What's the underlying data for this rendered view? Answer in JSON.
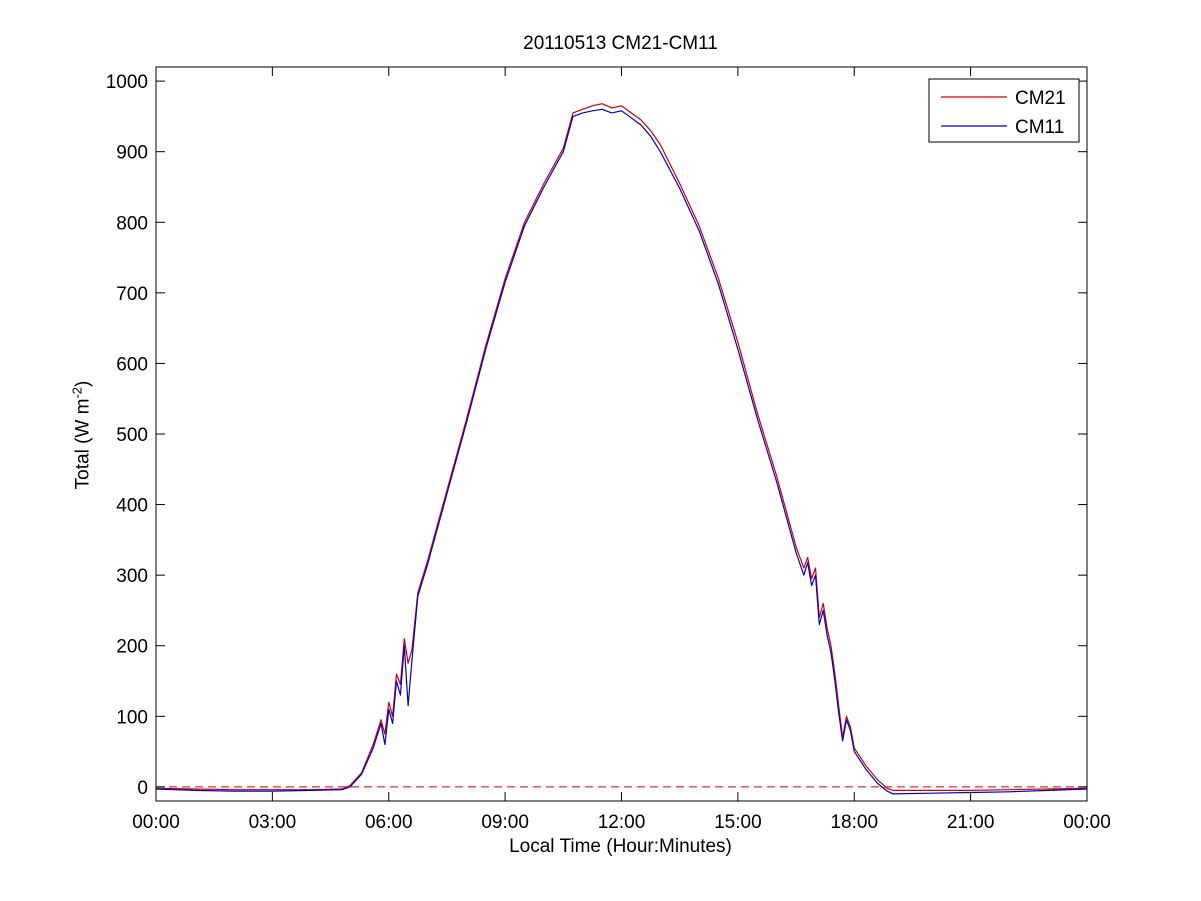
{
  "chart_data": {
    "type": "line",
    "title": "20110513 CM21-CM11",
    "xlabel": "Local Time (Hour:Minutes)",
    "ylabel_text": "Total (W m",
    "ylabel_sup": "-2",
    "ylabel_close": ")",
    "xlim": [
      0,
      24
    ],
    "ylim": [
      -20,
      1020
    ],
    "x_ticks": [
      {
        "value": 0,
        "label": "00:00"
      },
      {
        "value": 3,
        "label": "03:00"
      },
      {
        "value": 6,
        "label": "06:00"
      },
      {
        "value": 9,
        "label": "09:00"
      },
      {
        "value": 12,
        "label": "12:00"
      },
      {
        "value": 15,
        "label": "15:00"
      },
      {
        "value": 18,
        "label": "18:00"
      },
      {
        "value": 21,
        "label": "21:00"
      },
      {
        "value": 24,
        "label": "00:00"
      }
    ],
    "y_ticks": [
      {
        "value": 0,
        "label": "0"
      },
      {
        "value": 100,
        "label": "100"
      },
      {
        "value": 200,
        "label": "200"
      },
      {
        "value": 300,
        "label": "300"
      },
      {
        "value": 400,
        "label": "400"
      },
      {
        "value": 500,
        "label": "500"
      },
      {
        "value": 600,
        "label": "600"
      },
      {
        "value": 700,
        "label": "700"
      },
      {
        "value": 800,
        "label": "800"
      },
      {
        "value": 900,
        "label": "900"
      },
      {
        "value": 1000,
        "label": "1000"
      }
    ],
    "grid": false,
    "legend_position": "top-right",
    "reference_line": {
      "y": 0,
      "color": "#cc0000",
      "style": "dashed"
    },
    "series": [
      {
        "name": "CM21",
        "color": "#cc0000",
        "x": [
          0,
          1,
          2,
          3,
          4,
          4.8,
          5.0,
          5.3,
          5.6,
          5.8,
          5.9,
          6.0,
          6.1,
          6.2,
          6.3,
          6.4,
          6.5,
          6.6,
          6.75,
          7.0,
          7.5,
          8.0,
          8.5,
          9.0,
          9.5,
          10.0,
          10.5,
          10.75,
          11.0,
          11.25,
          11.5,
          11.75,
          12.0,
          12.25,
          12.5,
          12.75,
          13.0,
          13.5,
          14.0,
          14.5,
          15.0,
          15.5,
          16.0,
          16.5,
          16.7,
          16.8,
          16.9,
          17.0,
          17.1,
          17.2,
          17.3,
          17.4,
          17.5,
          17.6,
          17.7,
          17.8,
          17.9,
          18.0,
          18.3,
          18.6,
          18.85,
          19.0,
          20.0,
          21.0,
          22.0,
          23.0,
          24.0
        ],
        "y": [
          -2,
          -3,
          -4,
          -4,
          -4,
          -3,
          2,
          20,
          60,
          95,
          75,
          120,
          100,
          160,
          145,
          210,
          175,
          195,
          275,
          320,
          420,
          520,
          625,
          720,
          800,
          855,
          905,
          955,
          960,
          965,
          968,
          962,
          965,
          955,
          945,
          930,
          910,
          855,
          795,
          720,
          630,
          530,
          440,
          340,
          310,
          325,
          295,
          310,
          240,
          260,
          225,
          200,
          160,
          115,
          70,
          100,
          85,
          55,
          30,
          10,
          -2,
          -5,
          -5,
          -5,
          -4,
          -3,
          -2
        ]
      },
      {
        "name": "CM11",
        "color": "#0000cc",
        "x": [
          0,
          1,
          2,
          3,
          4,
          4.8,
          5.0,
          5.3,
          5.6,
          5.8,
          5.9,
          6.0,
          6.1,
          6.2,
          6.3,
          6.4,
          6.5,
          6.6,
          6.75,
          7.0,
          7.5,
          8.0,
          8.5,
          9.0,
          9.5,
          10.0,
          10.5,
          10.75,
          11.0,
          11.25,
          11.5,
          11.75,
          12.0,
          12.25,
          12.5,
          12.75,
          13.0,
          13.5,
          14.0,
          14.5,
          15.0,
          15.5,
          16.0,
          16.5,
          16.7,
          16.8,
          16.9,
          17.0,
          17.1,
          17.2,
          17.3,
          17.4,
          17.5,
          17.6,
          17.7,
          17.8,
          17.9,
          18.0,
          18.3,
          18.6,
          18.85,
          19.0,
          20.0,
          21.0,
          22.0,
          23.0,
          24.0
        ],
        "y": [
          -3,
          -5,
          -6,
          -6,
          -5,
          -4,
          0,
          18,
          55,
          90,
          60,
          110,
          90,
          150,
          130,
          200,
          115,
          180,
          270,
          315,
          415,
          515,
          620,
          715,
          795,
          850,
          900,
          950,
          955,
          958,
          960,
          955,
          958,
          948,
          938,
          922,
          900,
          848,
          788,
          712,
          620,
          522,
          432,
          332,
          300,
          318,
          285,
          300,
          230,
          250,
          215,
          190,
          150,
          105,
          65,
          95,
          80,
          50,
          25,
          5,
          -6,
          -10,
          -9,
          -8,
          -7,
          -5,
          -3
        ]
      }
    ]
  }
}
